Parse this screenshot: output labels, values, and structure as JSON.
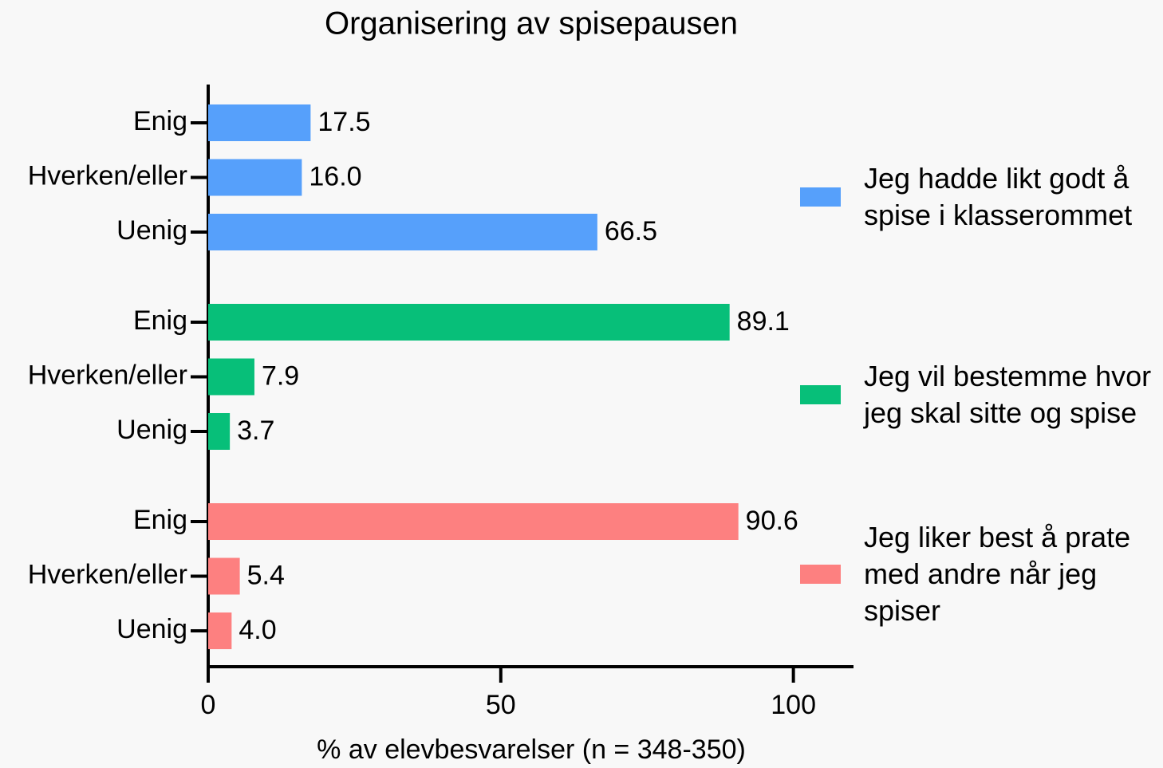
{
  "chart_data": {
    "type": "bar",
    "orientation": "horizontal",
    "title": "Organisering av spisepausen",
    "x_label": "% av elevbesvarelser (n = 348-350)",
    "categories": [
      "Enig",
      "Hverken/eller",
      "Uenig"
    ],
    "series": [
      {
        "name": "Jeg hadde likt godt å spise i klasserommet",
        "color": "#56a0fb",
        "values": [
          17.5,
          16.0,
          66.5
        ],
        "value_labels": [
          "17.5",
          "16.0",
          "66.5"
        ]
      },
      {
        "name": "Jeg vil bestemme hvor jeg skal sitte og spise",
        "color": "#07bf79",
        "values": [
          89.1,
          7.9,
          3.7
        ],
        "value_labels": [
          "89.1",
          "7.9",
          "3.7"
        ]
      },
      {
        "name": "Jeg liker best å prate med andre når jeg spiser",
        "color": "#fd8080",
        "values": [
          90.6,
          5.4,
          4.0
        ],
        "value_labels": [
          "90.6",
          "5.4",
          "4.0"
        ]
      }
    ],
    "xlim": [
      0,
      110
    ],
    "xticks": [
      0,
      50,
      100
    ],
    "grid": false,
    "legend": "right"
  }
}
